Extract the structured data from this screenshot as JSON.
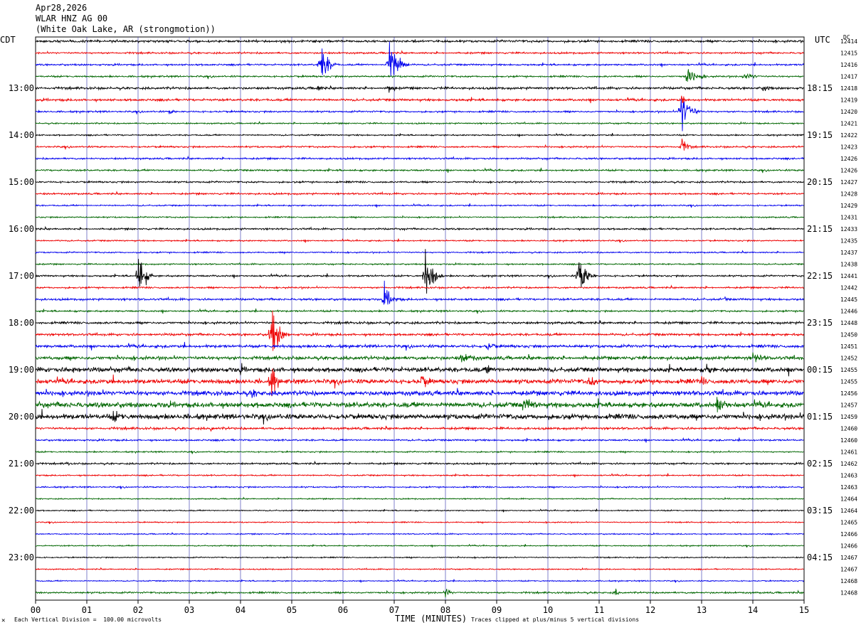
{
  "header": {
    "date": "Apr28,2026",
    "channel": "WLAR HNZ AG 00",
    "location": "(White Oak Lake, AR (strongmotion))"
  },
  "axis_labels": {
    "left_timezone": "CDT",
    "right_timezone": "UTC",
    "right_extra": "DC"
  },
  "footer": {
    "scale_note": "Each Vertical Division =  100.00 microvolts",
    "xlabel": "TIME (MINUTES)",
    "clip_note": "Traces clipped at plus/minus 5 vertical divisions",
    "logo_glyph": "✕"
  },
  "colors": {
    "trace_cycle": [
      "#000000",
      "#ee0000",
      "#0000ee",
      "#006600"
    ],
    "grid": "#2a2aa8"
  },
  "chart_data": {
    "type": "helicorder",
    "xlabel": "TIME (MINUTES)",
    "xlim": [
      0,
      15
    ],
    "x_ticks": [
      "00",
      "01",
      "02",
      "03",
      "04",
      "05",
      "06",
      "07",
      "08",
      "09",
      "10",
      "11",
      "12",
      "13",
      "14",
      "15"
    ],
    "lines_per_hour": 4,
    "left_hour_labels": [
      {
        "line": 4,
        "label": "13:00"
      },
      {
        "line": 8,
        "label": "14:00"
      },
      {
        "line": 12,
        "label": "15:00"
      },
      {
        "line": 16,
        "label": "16:00"
      },
      {
        "line": 20,
        "label": "17:00"
      },
      {
        "line": 24,
        "label": "18:00"
      },
      {
        "line": 28,
        "label": "19:00"
      },
      {
        "line": 32,
        "label": "20:00"
      },
      {
        "line": 36,
        "label": "21:00"
      },
      {
        "line": 40,
        "label": "22:00"
      },
      {
        "line": 44,
        "label": "23:00"
      }
    ],
    "right_hour_labels": [
      {
        "line": 4,
        "label": "18:15"
      },
      {
        "line": 8,
        "label": "19:15"
      },
      {
        "line": 12,
        "label": "20:15"
      },
      {
        "line": 16,
        "label": "21:15"
      },
      {
        "line": 20,
        "label": "22:15"
      },
      {
        "line": 24,
        "label": "23:15"
      },
      {
        "line": 28,
        "label": "00:15"
      },
      {
        "line": 32,
        "label": "01:15"
      },
      {
        "line": 36,
        "label": "02:15"
      },
      {
        "line": 40,
        "label": "03:15"
      },
      {
        "line": 44,
        "label": "04:15"
      }
    ],
    "dc_offsets": [
      "12414",
      "12415",
      "12416",
      "12417",
      "12418",
      "12419",
      "12420",
      "12421",
      "12422",
      "12423",
      "12426",
      "12426",
      "12427",
      "12428",
      "12429",
      "12431",
      "12433",
      "12435",
      "12437",
      "12438",
      "12441",
      "12442",
      "12445",
      "12446",
      "12448",
      "12450",
      "12451",
      "12452",
      "12455",
      "12455",
      "12456",
      "12457",
      "12459",
      "12460",
      "12460",
      "12461",
      "12462",
      "12463",
      "12463",
      "12464",
      "12464",
      "12465",
      "12466",
      "12466",
      "12467",
      "12467",
      "12468",
      "12468"
    ],
    "noise_levels": [
      2,
      1.5,
      1.5,
      1.5,
      2,
      2,
      1.5,
      1.2,
      1.2,
      1.5,
      1.5,
      1.5,
      1.5,
      1.5,
      1.2,
      1.2,
      1.5,
      1.2,
      1.2,
      1.2,
      1.5,
      1.5,
      1.8,
      1.5,
      2,
      2,
      2.5,
      3,
      4,
      4,
      4,
      4.5,
      4.5,
      2,
      1.5,
      1.2,
      1.5,
      1.2,
      1.2,
      1,
      1,
      1,
      1,
      1,
      1,
      1,
      1,
      1.5
    ],
    "events": [
      {
        "line": 2,
        "minute": 5.55,
        "amp": 40,
        "dur": 0.35
      },
      {
        "line": 2,
        "minute": 6.9,
        "amp": 45,
        "dur": 0.4
      },
      {
        "line": 4,
        "minute": 5.5,
        "amp": 10,
        "dur": 0.2
      },
      {
        "line": 4,
        "minute": 6.9,
        "amp": 12,
        "dur": 0.25
      },
      {
        "line": 3,
        "minute": 12.7,
        "amp": 14,
        "dur": 0.6
      },
      {
        "line": 3,
        "minute": 13.8,
        "amp": 8,
        "dur": 0.6
      },
      {
        "line": 4,
        "minute": 14.2,
        "amp": 6,
        "dur": 0.5
      },
      {
        "line": 6,
        "minute": 12.6,
        "amp": 35,
        "dur": 0.4
      },
      {
        "line": 6,
        "minute": 2.6,
        "amp": 6,
        "dur": 0.3
      },
      {
        "line": 5,
        "minute": 12.6,
        "amp": 8,
        "dur": 0.3
      },
      {
        "line": 9,
        "minute": 12.6,
        "amp": 15,
        "dur": 0.3
      },
      {
        "line": 20,
        "minute": 2.0,
        "amp": 45,
        "dur": 0.3
      },
      {
        "line": 20,
        "minute": 7.6,
        "amp": 45,
        "dur": 0.35
      },
      {
        "line": 20,
        "minute": 10.6,
        "amp": 40,
        "dur": 0.35
      },
      {
        "line": 22,
        "minute": 6.8,
        "amp": 20,
        "dur": 0.4
      },
      {
        "line": 22,
        "minute": 13.45,
        "amp": 6,
        "dur": 0.1
      },
      {
        "line": 25,
        "minute": 4.6,
        "amp": 45,
        "dur": 0.35
      },
      {
        "line": 26,
        "minute": 8.8,
        "amp": 8,
        "dur": 0.5
      },
      {
        "line": 27,
        "minute": 8.3,
        "amp": 10,
        "dur": 0.8
      },
      {
        "line": 27,
        "minute": 14.0,
        "amp": 10,
        "dur": 0.6
      },
      {
        "line": 28,
        "minute": 0.7,
        "amp": 10,
        "dur": 0.3
      },
      {
        "line": 28,
        "minute": 4.0,
        "amp": 8,
        "dur": 0.4
      },
      {
        "line": 28,
        "minute": 8.8,
        "amp": 10,
        "dur": 0.4
      },
      {
        "line": 28,
        "minute": 13.1,
        "amp": 10,
        "dur": 0.4
      },
      {
        "line": 29,
        "minute": 4.6,
        "amp": 30,
        "dur": 0.25
      },
      {
        "line": 29,
        "minute": 7.5,
        "amp": 12,
        "dur": 0.6
      },
      {
        "line": 29,
        "minute": 10.8,
        "amp": 10,
        "dur": 0.5
      },
      {
        "line": 29,
        "minute": 13.0,
        "amp": 8,
        "dur": 0.4
      },
      {
        "line": 30,
        "minute": 4.2,
        "amp": 10,
        "dur": 0.4
      },
      {
        "line": 30,
        "minute": 1.2,
        "amp": 8,
        "dur": 0.4
      },
      {
        "line": 31,
        "minute": 9.5,
        "amp": 10,
        "dur": 1.2
      },
      {
        "line": 31,
        "minute": 13.3,
        "amp": 12,
        "dur": 0.8
      },
      {
        "line": 32,
        "minute": 1.5,
        "amp": 10,
        "dur": 0.8
      },
      {
        "line": 33,
        "minute": 3.4,
        "amp": 6,
        "dur": 0.2
      },
      {
        "line": 36,
        "minute": 0.6,
        "amp": 5,
        "dur": 0.3
      },
      {
        "line": 47,
        "minute": 8.0,
        "amp": 12,
        "dur": 0.2
      },
      {
        "line": 47,
        "minute": 11.3,
        "amp": 8,
        "dur": 0.2
      }
    ]
  }
}
